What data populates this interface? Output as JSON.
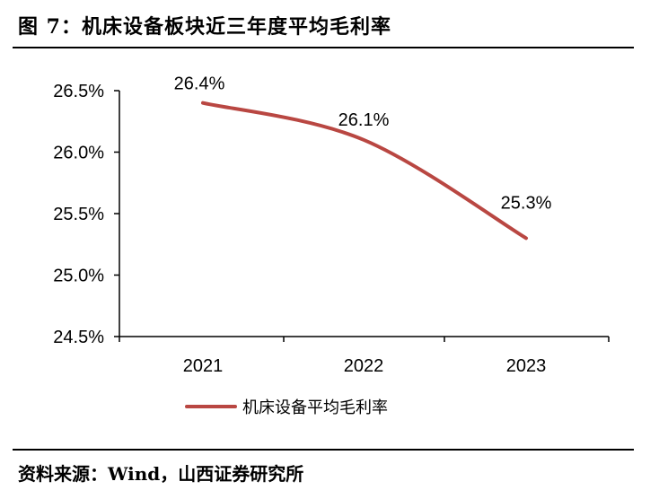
{
  "figure": {
    "title": "图 7：机床设备板块近三年度平均毛利率",
    "source": "资料来源：Wind，山西证券研究所"
  },
  "colors": {
    "series": "#b94742",
    "axis": "#000000"
  },
  "chart_data": {
    "type": "line",
    "title": "机床设备板块近三年度平均毛利率",
    "categories": [
      "2021",
      "2022",
      "2023"
    ],
    "series": [
      {
        "name": "机床设备平均毛利率",
        "values": [
          26.4,
          26.1,
          25.3
        ]
      }
    ],
    "data_labels": [
      "26.4%",
      "26.1%",
      "25.3%"
    ],
    "ylim": [
      24.5,
      26.5
    ],
    "yticks": [
      24.5,
      25.0,
      25.5,
      26.0,
      26.5
    ],
    "ytick_labels": [
      "24.5%",
      "25.0%",
      "25.5%",
      "26.0%",
      "26.5%"
    ],
    "xlabel": "",
    "ylabel": "",
    "grid": false,
    "legend": "bottom-center",
    "smooth": true
  }
}
